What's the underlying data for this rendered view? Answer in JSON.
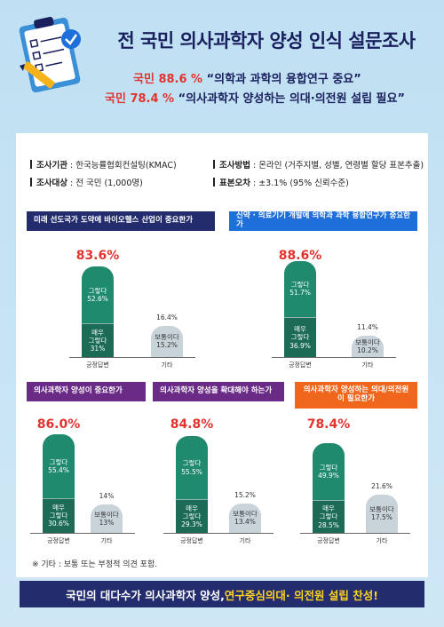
{
  "title": "전 국민 의사과학자 양성 인식 설문조사",
  "headline": [
    {
      "pct": "국민 88.6 %",
      "text": " “의학과 과학의 융합연구 중요”"
    },
    {
      "pct": "국민 78.4 %",
      "text": " “의사과학자 양성하는 의대·의전원 설립 필요”"
    }
  ],
  "survey_info": {
    "org_label": "조사기관",
    "org_value": " : 한국능률협회컨설팅(KMAC)",
    "target_label": "조사대상",
    "target_value": " : 전 국민 (1,000명)",
    "method_label": "조사방법",
    "method_value": " : 온라인 (거주지별, 성별, 연령별 할당 표본추출)",
    "error_label": "표본오차",
    "error_value": " : ±3.1% (95% 신뢰수준)"
  },
  "colors": {
    "navy": "#232d6d",
    "blue": "#1e6fd9",
    "purple": "#6a2b86",
    "orange": "#f0661c",
    "accent_red": "#e2332f",
    "green_light": "#1f8a6e",
    "green_dark": "#1b6b57",
    "neutral": "#c9d3da"
  },
  "chart_data": [
    {
      "type": "bar",
      "title": "미래 선도국가 도약에 바이오헬스 산업이 중요한가",
      "categories": [
        "긍정답변",
        "기타"
      ],
      "positive_total": "83.6%",
      "series": [
        {
          "name": "매우 그렇다",
          "values": [
            31,
            null
          ]
        },
        {
          "name": "그렇다",
          "values": [
            52.6,
            null
          ]
        },
        {
          "name": "보통이다",
          "values": [
            null,
            15.2
          ]
        }
      ],
      "other_total": 16.4,
      "labels": {
        "agree": "그렇다\n52.6%",
        "strong": "매우\n그렇다\n31%",
        "neutral": "보통이다\n15.2%",
        "other": "16.4%"
      }
    },
    {
      "type": "bar",
      "title": "신약 · 의료기기 개발에 의학과 과학 융합연구가 중요한가",
      "categories": [
        "긍정답변",
        "기타"
      ],
      "positive_total": "88.6%",
      "series": [
        {
          "name": "매우 그렇다",
          "values": [
            36.9,
            null
          ]
        },
        {
          "name": "그렇다",
          "values": [
            51.7,
            null
          ]
        },
        {
          "name": "보통이다",
          "values": [
            null,
            10.2
          ]
        }
      ],
      "other_total": 11.4,
      "labels": {
        "agree": "그렇다\n51.7%",
        "strong": "매우\n그렇다\n36.9%",
        "neutral": "보통이다\n10.2%",
        "other": "11.4%"
      }
    },
    {
      "type": "bar",
      "title": "의사과학자 양성이 중요한가",
      "categories": [
        "긍정답변",
        "기타"
      ],
      "positive_total": "86.0%",
      "series": [
        {
          "name": "매우 그렇다",
          "values": [
            30.6,
            null
          ]
        },
        {
          "name": "그렇다",
          "values": [
            55.4,
            null
          ]
        },
        {
          "name": "보통이다",
          "values": [
            null,
            13
          ]
        }
      ],
      "other_total": 14,
      "labels": {
        "agree": "그렇다\n55.4%",
        "strong": "매우\n그렇다\n30.6%",
        "neutral": "보통이다\n13%",
        "other": "14%"
      }
    },
    {
      "type": "bar",
      "title": "의사과학자 양성을 확대해야 하는가",
      "categories": [
        "긍정답변",
        "기타"
      ],
      "positive_total": "84.8%",
      "series": [
        {
          "name": "매우 그렇다",
          "values": [
            29.3,
            null
          ]
        },
        {
          "name": "그렇다",
          "values": [
            55.5,
            null
          ]
        },
        {
          "name": "보통이다",
          "values": [
            null,
            13.4
          ]
        }
      ],
      "other_total": 15.2,
      "labels": {
        "agree": "그렇다\n55.5%",
        "strong": "매우\n그렇다\n29.3%",
        "neutral": "보통이다\n13.4%",
        "other": "15.2%"
      }
    },
    {
      "type": "bar",
      "title": "의사과학자 양성하는 의대/의전원이 필요한가",
      "categories": [
        "긍정답변",
        "기타"
      ],
      "positive_total": "78.4%",
      "series": [
        {
          "name": "매우 그렇다",
          "values": [
            28.5,
            null
          ]
        },
        {
          "name": "그렇다",
          "values": [
            49.9,
            null
          ]
        },
        {
          "name": "보통이다",
          "values": [
            null,
            17.5
          ]
        }
      ],
      "other_total": 21.6,
      "labels": {
        "agree": "그렇다\n49.9%",
        "strong": "매우\n그렇다\n28.5%",
        "neutral": "보통이다\n17.5%",
        "other": "21.6%"
      }
    }
  ],
  "note": "※ 기타 : 보통 또는 부정적 의견 포함.",
  "footer": {
    "part1": "국민의 대다수가 의사과학자 양성, ",
    "part2": "연구중심의대",
    "part3": " · 의전원 설립 찬성!"
  }
}
